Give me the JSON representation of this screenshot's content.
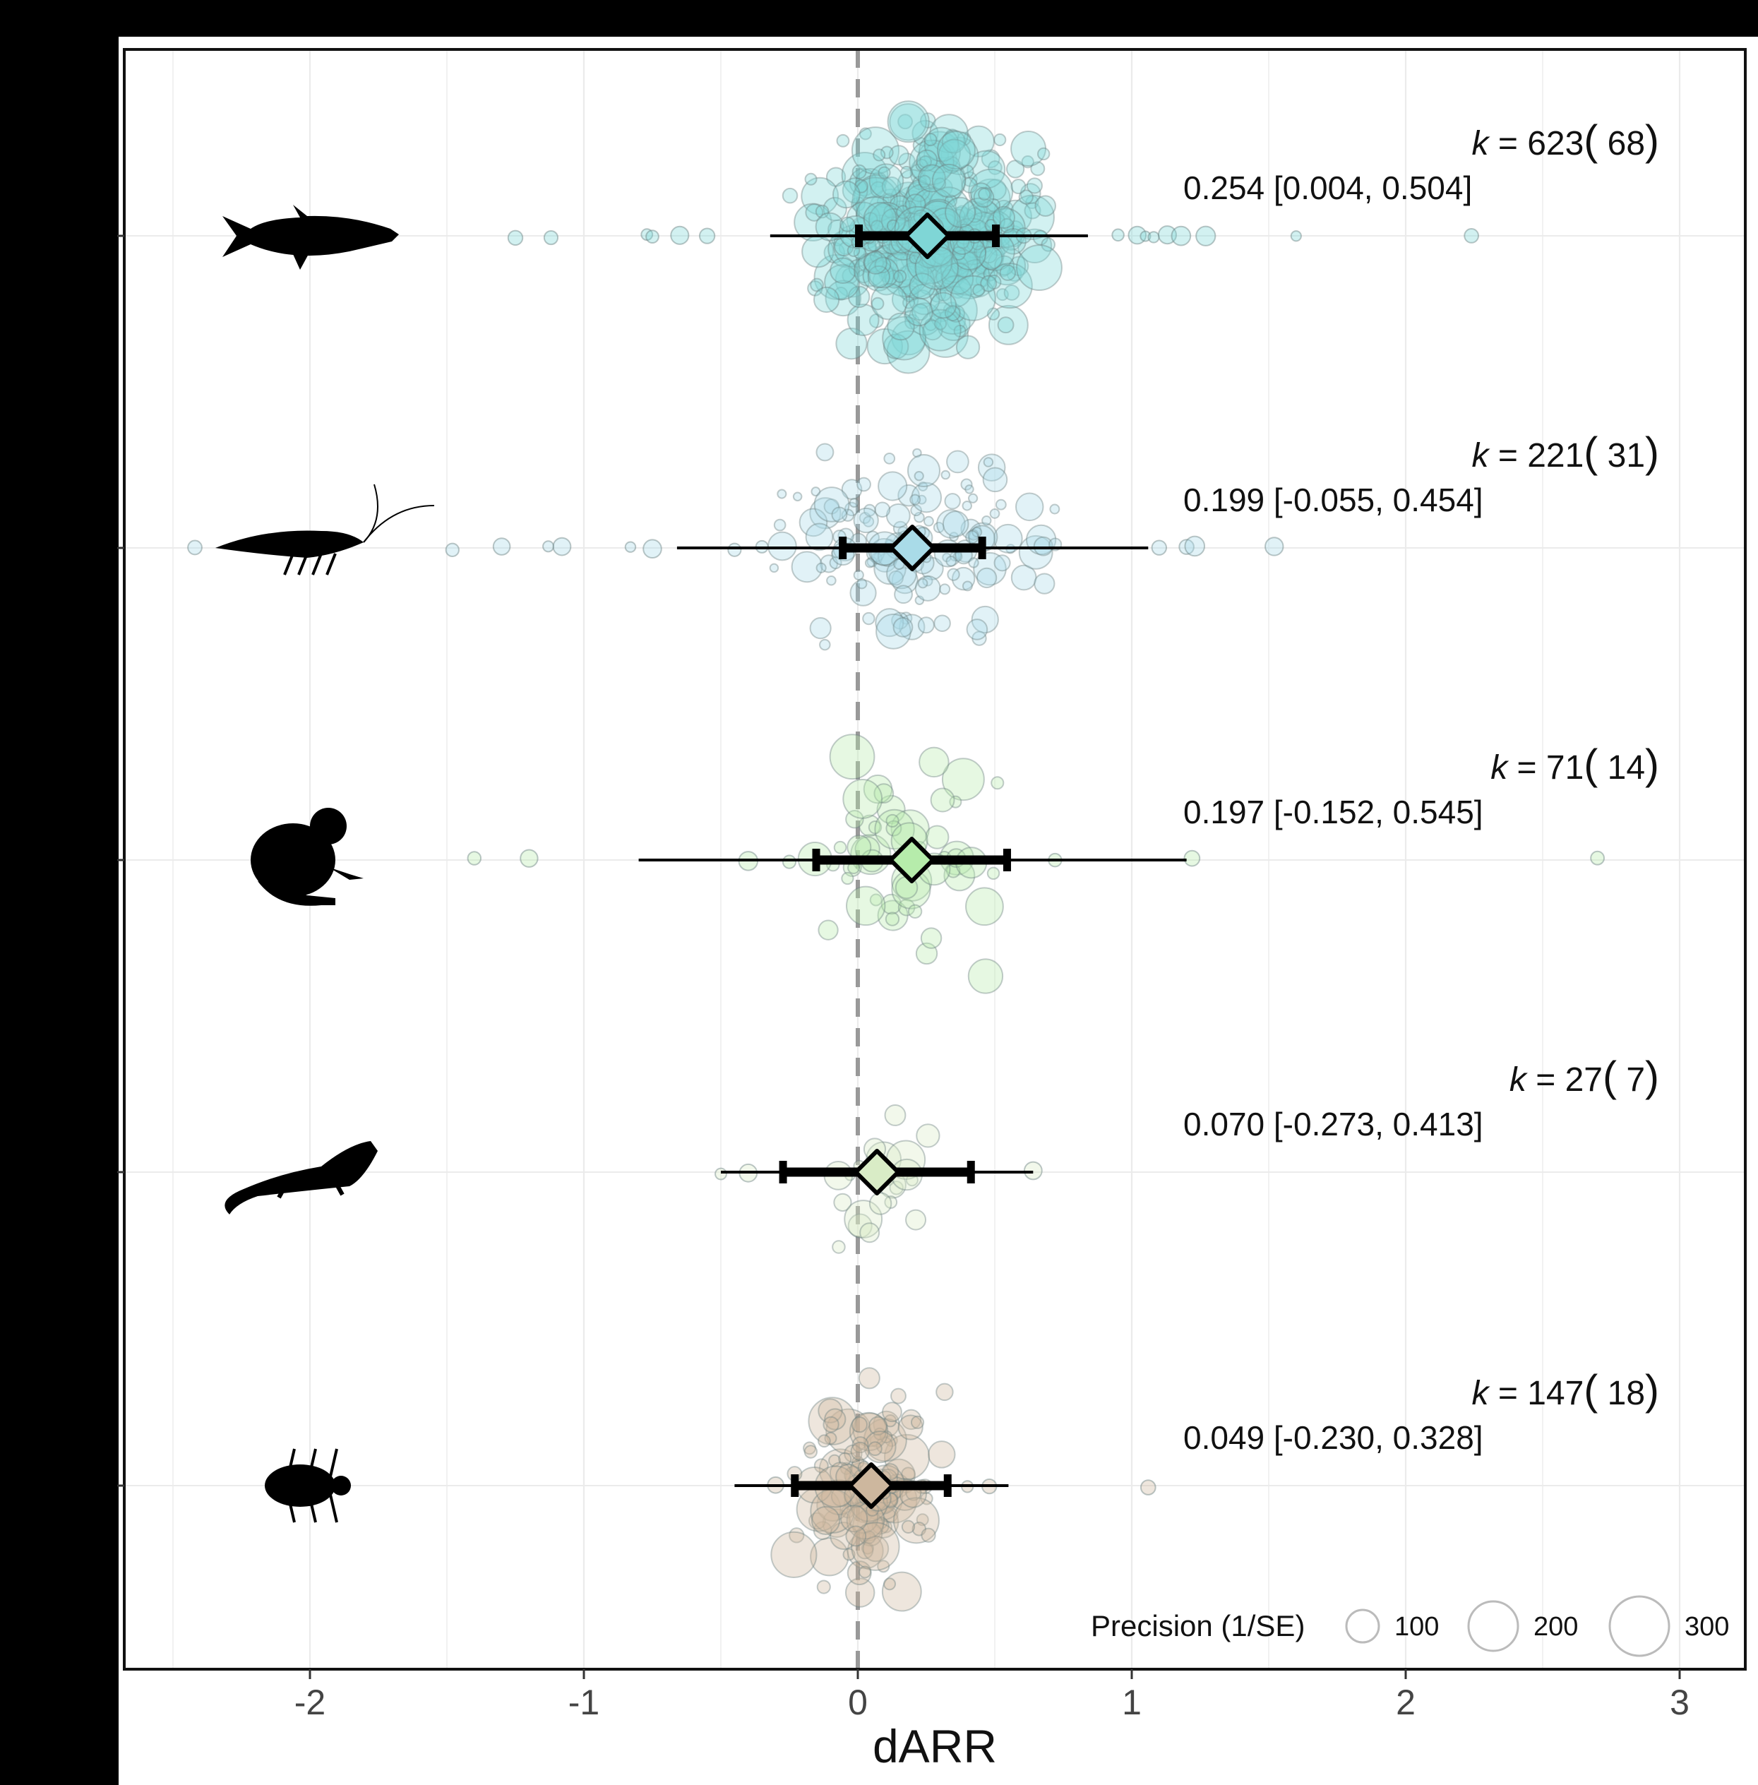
{
  "chart_data": {
    "type": "scatter",
    "subtype": "orchard plot (forest plot with beeswarm of effect sizes)",
    "xlabel": "dARR",
    "ylabel": "",
    "xlim": [
      -2.6,
      3.2
    ],
    "x_ticks": [
      -2,
      -1,
      0,
      1,
      2,
      3
    ],
    "x_tick_labels": [
      "-2",
      "-1",
      "0",
      "1",
      "2",
      "3"
    ],
    "reference_line": 0,
    "grid": true,
    "legend": {
      "title": "Precision (1/SE)",
      "placement": "bottom-right",
      "sizes": [
        100,
        200,
        300
      ],
      "size_labels": [
        "100",
        "200",
        "300"
      ]
    },
    "groups": [
      {
        "icon": "fish-silhouette-icon",
        "color": "#7fd6d6",
        "k": "623",
        "n": "68",
        "estimate": 0.254,
        "ci_low": 0.004,
        "ci_high": 0.504,
        "pi_low": -0.32,
        "pi_high": 0.84,
        "stats_label": "0.254 [0.004, 0.504]",
        "n_points": 420,
        "spread": 0.38,
        "height": 0.78,
        "r_scale": 1.0,
        "outliers": [
          -1.25,
          -1.12,
          -0.77,
          -0.75,
          -0.65,
          -0.55,
          0.95,
          1.02,
          1.05,
          1.08,
          1.13,
          1.18,
          1.27,
          1.6,
          2.24
        ]
      },
      {
        "icon": "shrimp-silhouette-icon",
        "color": "#a9dbe8",
        "k": "221",
        "n": "31",
        "estimate": 0.199,
        "ci_low": -0.055,
        "ci_high": 0.454,
        "pi_low": -0.66,
        "pi_high": 1.06,
        "stats_label": "0.199 [-0.055, 0.454]",
        "n_points": 150,
        "spread": 0.42,
        "height": 0.72,
        "r_scale": 0.72,
        "outliers": [
          -2.42,
          -1.48,
          -1.3,
          -1.13,
          -1.08,
          -0.83,
          -0.75,
          -0.45,
          -0.35,
          1.1,
          1.2,
          1.23,
          1.52
        ]
      },
      {
        "icon": "frog-silhouette-icon",
        "color": "#b6ecab",
        "k": "71",
        "n": "14",
        "estimate": 0.197,
        "ci_low": -0.152,
        "ci_high": 0.545,
        "pi_low": -0.8,
        "pi_high": 1.2,
        "stats_label": "0.197 [-0.152, 0.545]",
        "n_points": 55,
        "spread": 0.3,
        "height": 0.78,
        "r_scale": 1.0,
        "outliers": [
          -1.4,
          -1.2,
          -0.4,
          -0.25,
          0.72,
          1.22,
          2.7
        ]
      },
      {
        "icon": "lizard-silhouette-icon",
        "color": "#d9ecc6",
        "k": "27",
        "n": "7",
        "estimate": 0.07,
        "ci_low": -0.273,
        "ci_high": 0.413,
        "pi_low": -0.5,
        "pi_high": 0.64,
        "stats_label": "0.070 [-0.273, 0.413]",
        "n_points": 22,
        "spread": 0.25,
        "height": 0.7,
        "r_scale": 0.85,
        "outliers": [
          -0.5,
          -0.4,
          0.64
        ]
      },
      {
        "icon": "beetle-silhouette-icon",
        "color": "#cdb79e",
        "k": "147",
        "n": "18",
        "estimate": 0.049,
        "ci_low": -0.23,
        "ci_high": 0.328,
        "pi_low": -0.45,
        "pi_high": 0.55,
        "stats_label": "0.049 [-0.230, 0.328]",
        "n_points": 140,
        "spread": 0.22,
        "height": 0.76,
        "r_scale": 1.0,
        "outliers": [
          -0.3,
          0.4,
          0.48,
          1.06
        ]
      }
    ]
  },
  "colors": {
    "reference_line": "#999999",
    "grid": "#ebebeb",
    "frame": "#111111",
    "left_strip": "#000000"
  }
}
